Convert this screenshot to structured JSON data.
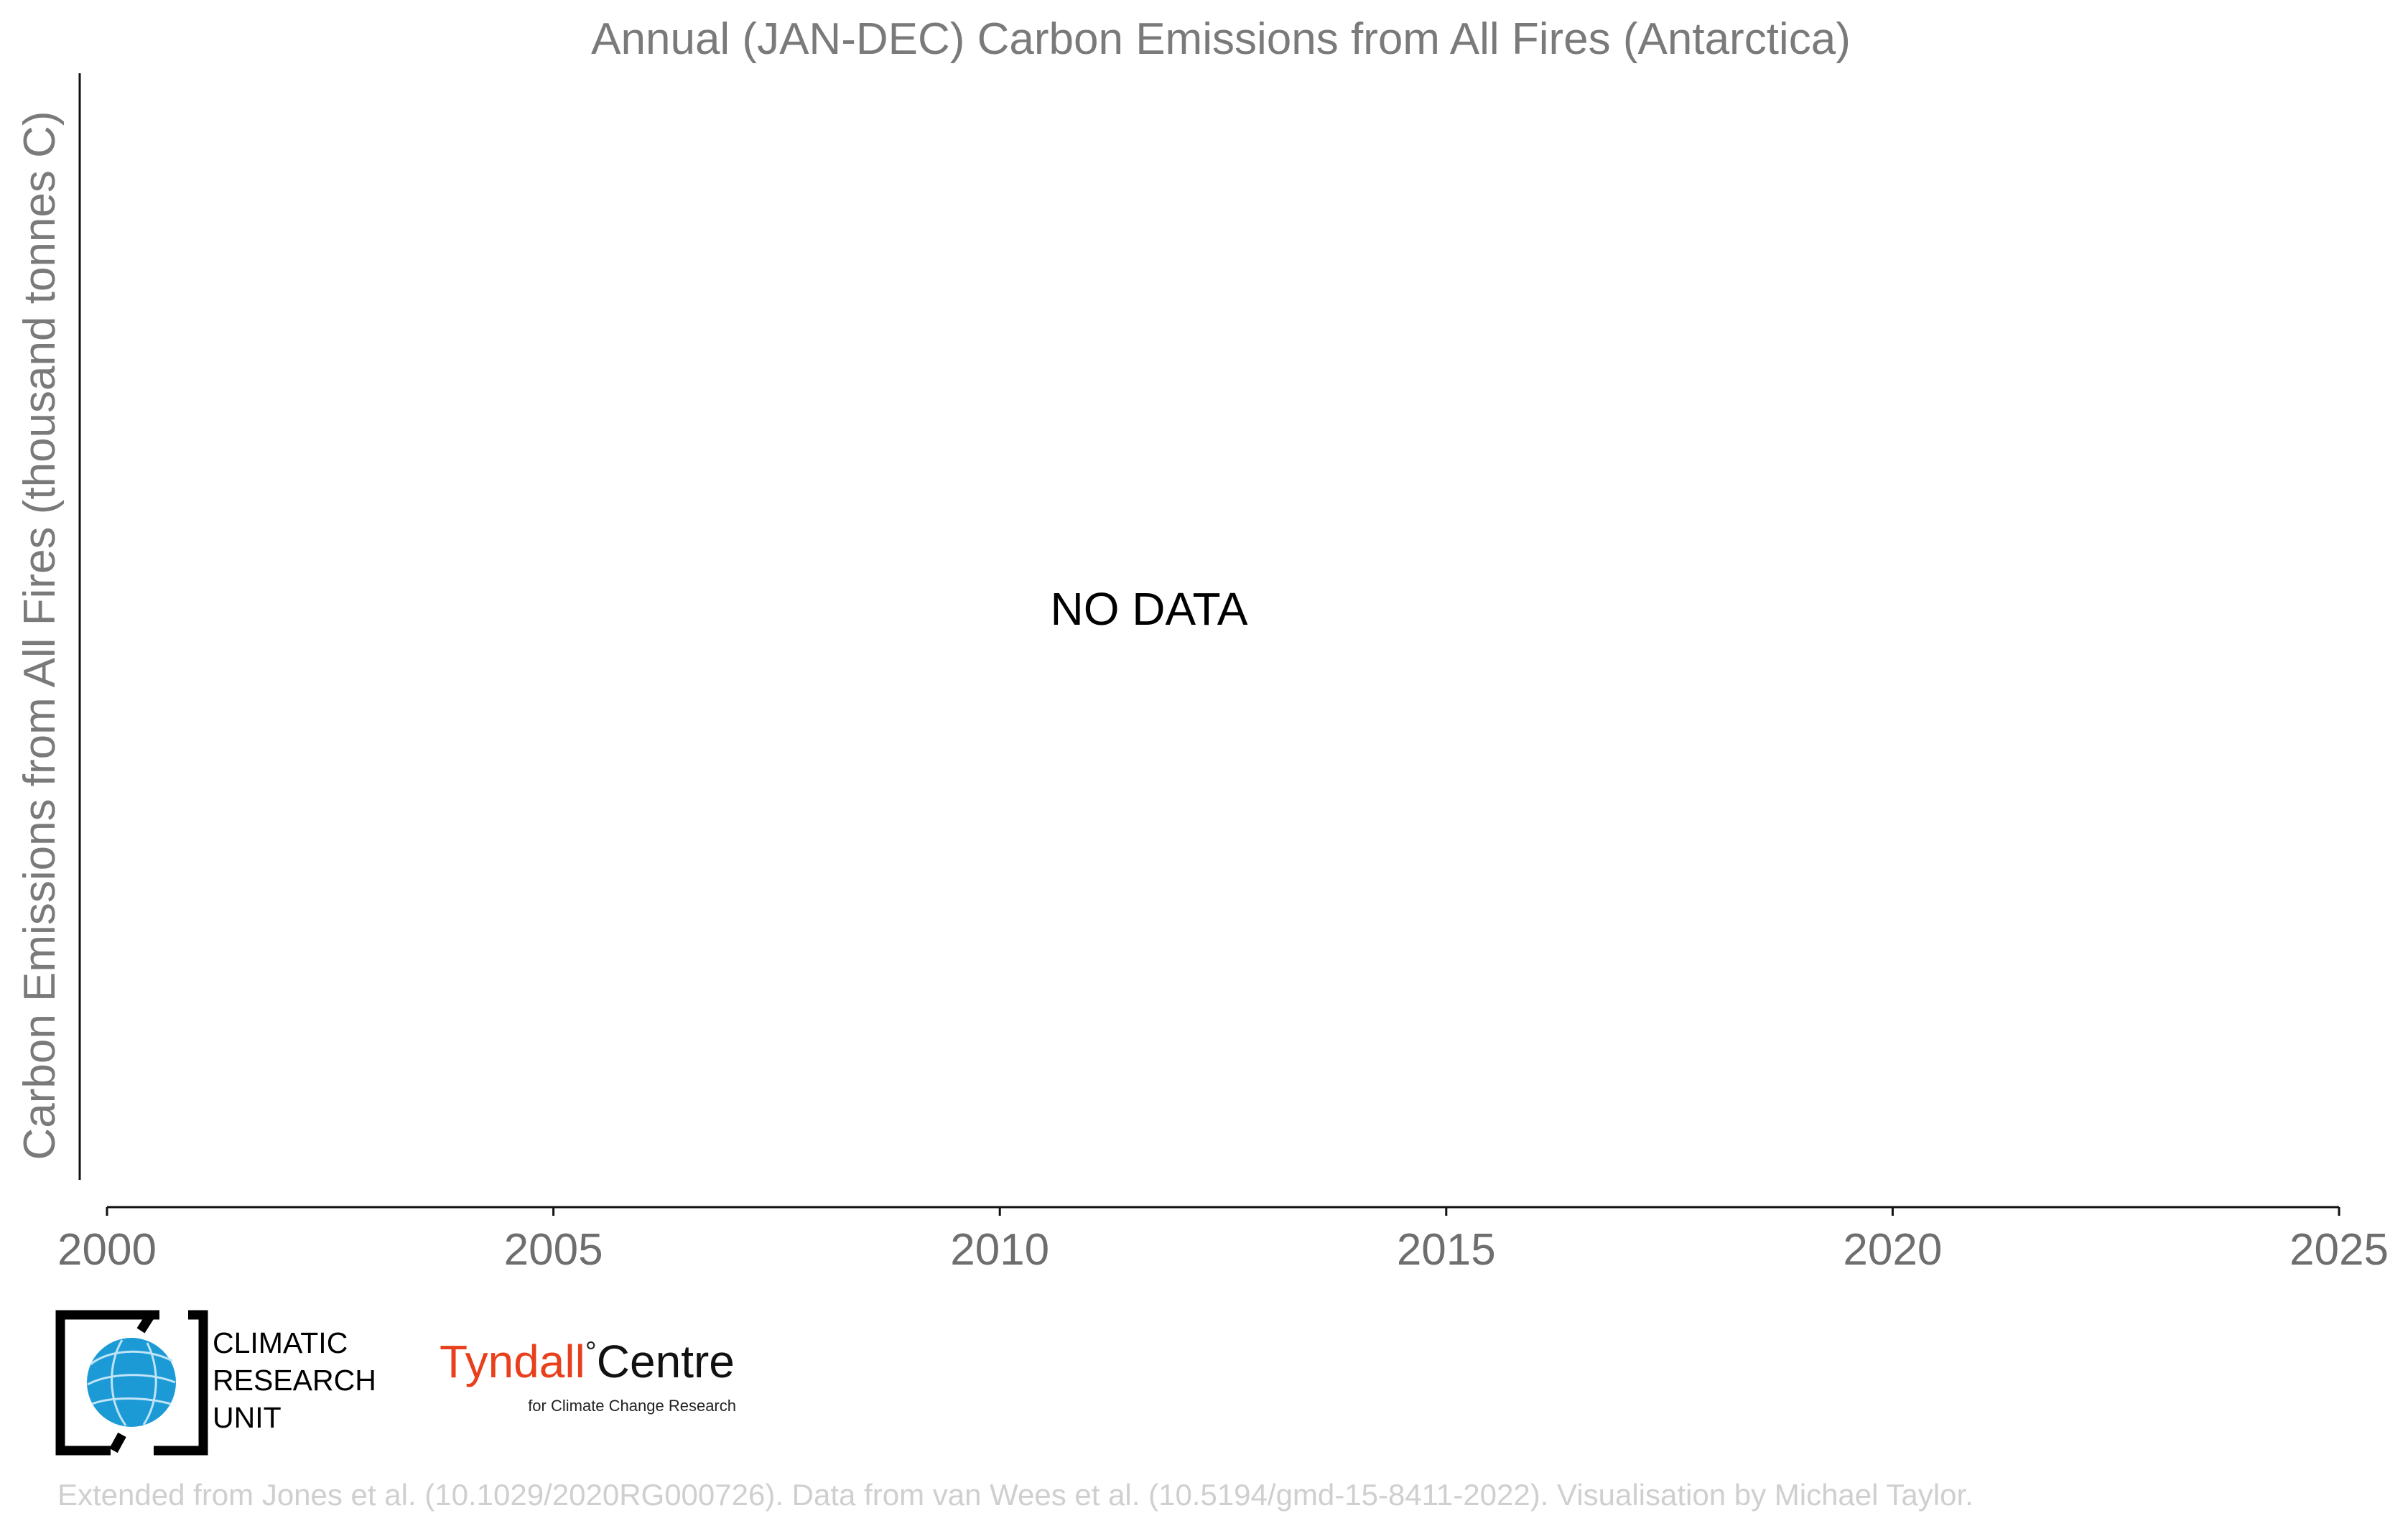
{
  "chart_data": {
    "type": "line",
    "title": "Annual (JAN-DEC) Carbon Emissions from All Fires (Antarctica)",
    "xlabel": "",
    "ylabel": "Carbon Emissions from All Fires (thousand tonnes C)",
    "xlim": [
      2000,
      2025
    ],
    "x_ticks": [
      "2000",
      "2005",
      "2010",
      "2015",
      "2020",
      "2025"
    ],
    "series": [],
    "grid": false,
    "legend": "none",
    "annotation": "NO DATA"
  },
  "logos": {
    "cru": {
      "lines": [
        "CLIMATIC",
        "RESEARCH",
        "UNIT"
      ],
      "globe_color": "#1b9ad6"
    },
    "tyndall": {
      "name_part1": "Tyndall",
      "degree": "°",
      "name_part2": "Centre",
      "subtitle": "for Climate Change Research",
      "accent_color": "#e8401c"
    }
  },
  "footer": {
    "credit": "Extended from Jones et al. (10.1029/2020RG000726). Data from van Wees et al. (10.5194/gmd-15-8411-2022). Visualisation by Michael Taylor."
  }
}
